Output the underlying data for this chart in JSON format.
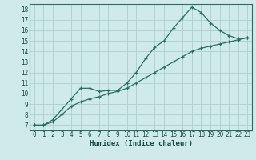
{
  "title": "",
  "xlabel": "Humidex (Indice chaleur)",
  "ylabel": "",
  "background_color": "#ceeaea",
  "line_color": "#2e6e62",
  "grid_color": "#add0cc",
  "x_values": [
    0,
    1,
    2,
    3,
    4,
    5,
    6,
    7,
    8,
    9,
    10,
    11,
    12,
    13,
    14,
    15,
    16,
    17,
    18,
    19,
    20,
    21,
    22,
    23
  ],
  "y_series1": [
    7.0,
    7.0,
    7.5,
    8.5,
    9.5,
    10.5,
    10.5,
    10.2,
    10.3,
    10.3,
    11.0,
    12.0,
    13.3,
    14.4,
    15.0,
    16.2,
    17.2,
    18.2,
    17.7,
    16.7,
    16.0,
    15.5,
    15.2,
    15.3
  ],
  "y_series2": [
    7.0,
    7.0,
    7.3,
    8.0,
    8.8,
    9.2,
    9.5,
    9.7,
    10.0,
    10.2,
    10.5,
    11.0,
    11.5,
    12.0,
    12.5,
    13.0,
    13.5,
    14.0,
    14.3,
    14.5,
    14.7,
    14.9,
    15.1,
    15.3
  ],
  "ylim": [
    6.5,
    18.5
  ],
  "xlim": [
    -0.5,
    23.5
  ],
  "yticks": [
    7,
    8,
    9,
    10,
    11,
    12,
    13,
    14,
    15,
    16,
    17,
    18
  ],
  "xticks": [
    0,
    1,
    2,
    3,
    4,
    5,
    6,
    7,
    8,
    9,
    10,
    11,
    12,
    13,
    14,
    15,
    16,
    17,
    18,
    19,
    20,
    21,
    22,
    23
  ],
  "tick_fontsize": 5.5,
  "xlabel_fontsize": 6.5
}
